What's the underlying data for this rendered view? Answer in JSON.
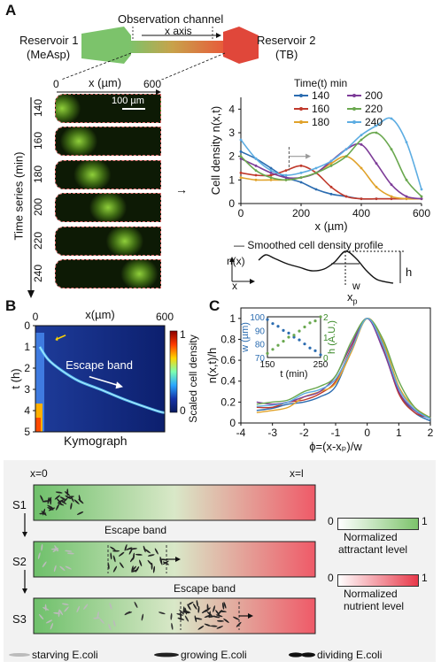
{
  "panelA": {
    "letter": "A",
    "observation_channel": "Observation channel",
    "x_axis": "x axis",
    "reservoir1": [
      "Reservoir 1",
      "(MeAsp)"
    ],
    "reservoir2": [
      "Reservoir 2",
      "(TB)"
    ],
    "micro_xlabel": "x (µm)",
    "micro_x0": "0",
    "micro_x1": "600",
    "scalebar": "100 µm",
    "time_label": "Time series (min)",
    "time_ticks": [
      "140",
      "160",
      "180",
      "200",
      "220",
      "240"
    ],
    "arrow_glyph": "→",
    "smoothed_label": "— Smoothed cell density profile",
    "profile_nx": "n(x)",
    "profile_x": "x",
    "profile_w": "w",
    "profile_h": "h",
    "profile_xp": "x",
    "profile_xp_sub": "p"
  },
  "panelB": {
    "letter": "B",
    "kymograph": "Kymograph",
    "escape_band": "Escape band",
    "colorbar_label": "Scaled cell density",
    "colorbar_ticks": [
      "1",
      "0"
    ]
  },
  "panelC": {
    "letter": "C"
  },
  "schematic": {
    "x0": "x=0",
    "xl": "x=l",
    "stages": [
      "S1",
      "S2",
      "S3"
    ],
    "escape_band_s2": "Escape band",
    "escape_band_s3": "Escape band",
    "attractant_legend": {
      "lo": "0",
      "hi": "1",
      "label": [
        "Normalized",
        "attractant level"
      ],
      "color": "#7cc36b"
    },
    "nutrient_legend": {
      "lo": "0",
      "hi": "1",
      "label": [
        "Normalized",
        "nutrient level"
      ],
      "color": "#e8394a"
    },
    "cell_legend": [
      "starving E.coli",
      "growing E.coli",
      "dividing E.coli"
    ]
  },
  "chart_data": [
    {
      "type": "line",
      "title": "",
      "xlabel": "x (µm)",
      "ylabel": "Cell density n(x,t)",
      "xlim": [
        0,
        600
      ],
      "ylim": [
        0,
        4.5
      ],
      "xticks": [
        0,
        200,
        400,
        600
      ],
      "yticks": [
        0,
        1,
        2,
        3,
        4
      ],
      "legend_title": "Time(t) min",
      "legend_position": "top-right",
      "x": [
        0,
        50,
        100,
        150,
        200,
        250,
        300,
        350,
        400,
        450,
        500,
        550,
        600
      ],
      "series": [
        {
          "name": "140",
          "color": "#2b6cb0",
          "values": [
            2.2,
            1.9,
            1.5,
            1.1,
            0.9,
            0.6,
            0.4,
            0.3,
            0.2,
            0.2,
            0.2,
            0.2,
            0.2
          ]
        },
        {
          "name": "160",
          "color": "#c0392b",
          "values": [
            1.3,
            1.2,
            1.2,
            1.4,
            1.6,
            1.3,
            0.7,
            0.3,
            0.2,
            0.2,
            0.2,
            0.2,
            0.2
          ]
        },
        {
          "name": "180",
          "color": "#e0a22a",
          "values": [
            1.1,
            1.0,
            1.0,
            1.0,
            1.1,
            1.3,
            1.7,
            2.0,
            1.5,
            0.7,
            0.3,
            0.2,
            0.2
          ]
        },
        {
          "name": "200",
          "color": "#7d3c98",
          "values": [
            1.9,
            1.6,
            1.3,
            1.1,
            1.1,
            1.3,
            1.8,
            2.3,
            2.5,
            1.7,
            0.8,
            0.3,
            0.2
          ]
        },
        {
          "name": "220",
          "color": "#6aa84f",
          "values": [
            2.0,
            1.4,
            1.1,
            1.0,
            1.1,
            1.3,
            1.6,
            2.0,
            2.7,
            3.0,
            2.3,
            1.0,
            0.3
          ]
        },
        {
          "name": "240",
          "color": "#5dade2",
          "values": [
            2.7,
            1.9,
            1.4,
            1.2,
            1.3,
            1.5,
            1.8,
            2.3,
            2.9,
            3.3,
            3.6,
            2.6,
            0.6
          ]
        }
      ]
    },
    {
      "type": "heatmap",
      "title": "",
      "xlabel": "x(µm)",
      "ylabel": "t (h)",
      "xlim": [
        0,
        600
      ],
      "ylim": [
        0,
        5
      ],
      "xticks": [
        0,
        600
      ],
      "yticks": [
        0,
        1,
        2,
        3,
        4,
        5
      ],
      "colorbar": {
        "label": "Scaled cell density",
        "range": [
          0,
          1
        ]
      }
    },
    {
      "type": "line",
      "title": "",
      "xlabel": "ϕ=(x-xₚ)/w",
      "ylabel": "n(x,t)/h",
      "xlim": [
        -4,
        2
      ],
      "ylim": [
        0,
        1.1
      ],
      "xticks": [
        -4,
        -3,
        -2,
        -1,
        0,
        1,
        2
      ],
      "yticks": [
        0,
        0.2,
        0.4,
        0.6,
        0.8,
        1
      ],
      "x": [
        -3.5,
        -3.0,
        -2.5,
        -2.0,
        -1.5,
        -1.0,
        -0.5,
        0.0,
        0.5,
        1.0,
        1.5,
        2.0
      ],
      "series": [
        {
          "color": "#2b6cb0",
          "values": [
            0.12,
            0.14,
            0.18,
            0.2,
            0.25,
            0.35,
            0.7,
            1.0,
            0.75,
            0.3,
            0.1,
            0.02
          ]
        },
        {
          "color": "#c0392b",
          "values": [
            0.15,
            0.15,
            0.2,
            0.22,
            0.28,
            0.4,
            0.72,
            1.0,
            0.72,
            0.28,
            0.1,
            0.05
          ]
        },
        {
          "color": "#e0a22a",
          "values": [
            0.1,
            0.12,
            0.15,
            0.25,
            0.3,
            0.38,
            0.68,
            1.0,
            0.78,
            0.35,
            0.15,
            0.05
          ]
        },
        {
          "color": "#7d3c98",
          "values": [
            0.2,
            0.18,
            0.2,
            0.25,
            0.3,
            0.45,
            0.75,
            1.0,
            0.7,
            0.3,
            0.12,
            0.04
          ]
        },
        {
          "color": "#6aa84f",
          "values": [
            0.18,
            0.2,
            0.22,
            0.3,
            0.35,
            0.45,
            0.78,
            1.0,
            0.8,
            0.4,
            0.15,
            0.05
          ]
        },
        {
          "color": "#5dade2",
          "values": [
            0.16,
            0.17,
            0.2,
            0.28,
            0.32,
            0.42,
            0.7,
            1.0,
            0.74,
            0.33,
            0.13,
            0.04
          ]
        }
      ]
    },
    {
      "type": "scatter",
      "title": "",
      "xlabel": "t (min)",
      "ylabel": "w (µm)",
      "ylabel_right": "h (A.U.)",
      "xlim": [
        150,
        250
      ],
      "ylim": [
        70,
        100
      ],
      "ylim_right": [
        0,
        2
      ],
      "xticks": [
        150,
        250
      ],
      "yticks": [
        70,
        80,
        90,
        100
      ],
      "yticks_right": [
        0,
        1,
        2
      ],
      "x": [
        150,
        160,
        170,
        180,
        190,
        200,
        210,
        220,
        230,
        240,
        250
      ],
      "series": [
        {
          "color": "#2b6cb0",
          "axis": "left",
          "values": [
            98,
            95,
            93,
            90,
            88,
            85,
            83,
            80,
            77,
            75,
            72
          ]
        },
        {
          "color": "#6aa84f",
          "axis": "right",
          "values": [
            0.2,
            0.4,
            0.6,
            0.8,
            1.0,
            1.1,
            1.3,
            1.5,
            1.7,
            1.8,
            2.0
          ]
        }
      ]
    }
  ]
}
